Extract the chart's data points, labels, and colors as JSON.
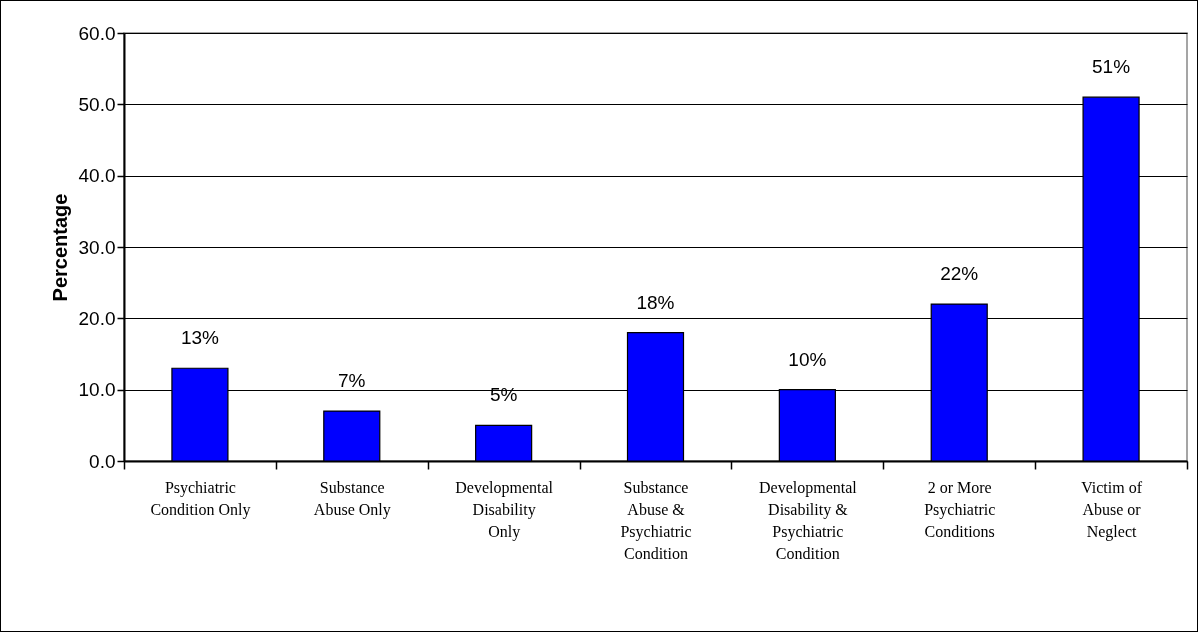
{
  "chart_data": {
    "type": "bar",
    "ylabel": "Percentage",
    "categories": [
      "Psychiatric Condition Only",
      "Substance Abuse Only",
      "Developmental Disability Only",
      "Substance Abuse & Psychiatric Condition",
      "Developmental Disability & Psychiatric Condition",
      "2 or More Psychiatric Conditions",
      "Victim of Abuse or Neglect"
    ],
    "values": [
      13,
      7,
      5,
      18,
      10,
      22,
      51
    ],
    "value_labels": [
      "13%",
      "7%",
      "5%",
      "18%",
      "10%",
      "22%",
      "51%"
    ],
    "color": "#0000ff",
    "ylim": [
      0,
      60
    ],
    "yticks": [
      {
        "value": 0,
        "label": "0.0"
      },
      {
        "value": 10,
        "label": "10.0"
      },
      {
        "value": 20,
        "label": "20.0"
      },
      {
        "value": 30,
        "label": "30.0"
      },
      {
        "value": 40,
        "label": "40.0"
      },
      {
        "value": 50,
        "label": "50.0"
      },
      {
        "value": 60,
        "label": "60.0"
      }
    ],
    "grid": "y"
  }
}
